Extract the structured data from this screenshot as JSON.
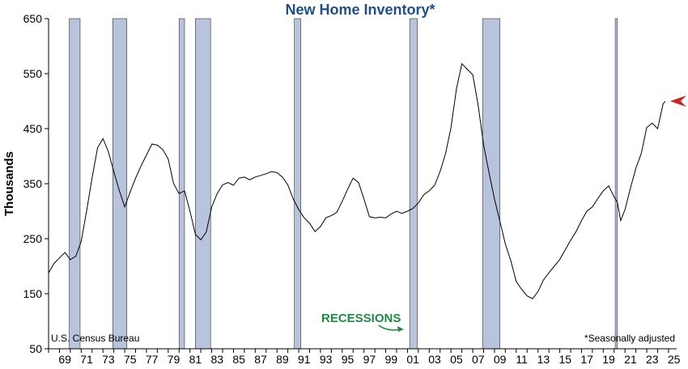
{
  "chart_data": {
    "type": "line",
    "title": "New Home Inventory*",
    "ylabel": "Thousands",
    "ylim": [
      50,
      650
    ],
    "yticks": [
      "650",
      "550",
      "450",
      "350",
      "250",
      "150",
      "50"
    ],
    "xlim": [
      1968.0,
      2025.75
    ],
    "xtick_labels": [
      "69",
      "71",
      "73",
      "75",
      "77",
      "79",
      "81",
      "83",
      "85",
      "87",
      "89",
      "91",
      "93",
      "95",
      "97",
      "99",
      "01",
      "03",
      "05",
      "07",
      "09",
      "11",
      "13",
      "15",
      "17",
      "19",
      "21",
      "23",
      "25"
    ],
    "source": "U.S. Census Bureau",
    "footnote": "*Seasonally adjusted",
    "recession_label": "RECESSIONS",
    "grid": false,
    "colors": {
      "line": "#000000",
      "recession_fill": "#b8c3dc",
      "recession_stroke": "#333333",
      "title": "#1f4e8c",
      "recession_label": "#1e8c44",
      "marker": "#cc2222"
    },
    "recessions": [
      [
        1969.9,
        1970.9
      ],
      [
        1973.9,
        1975.2
      ],
      [
        1980.0,
        1980.5
      ],
      [
        1981.5,
        1982.9
      ],
      [
        1990.6,
        1991.2
      ],
      [
        2001.2,
        2001.9
      ],
      [
        2007.9,
        2009.5
      ],
      [
        2020.1,
        2020.3
      ]
    ],
    "series": [
      {
        "x": [
          1968.0,
          1968.5,
          1969.0,
          1969.5,
          1970.0,
          1970.5,
          1971.0,
          1971.5,
          1972.0,
          1972.5,
          1973.0,
          1973.5,
          1974.0,
          1974.5,
          1975.0,
          1975.5,
          1976.0,
          1976.5,
          1977.0,
          1977.5,
          1978.0,
          1978.5,
          1979.0,
          1979.5,
          1980.0,
          1980.5,
          1981.0,
          1981.5,
          1982.0,
          1982.5,
          1983.0,
          1983.5,
          1984.0,
          1984.5,
          1985.0,
          1985.5,
          1986.0,
          1986.5,
          1987.0,
          1987.5,
          1988.0,
          1988.5,
          1989.0,
          1989.5,
          1990.0,
          1990.5,
          1991.0,
          1991.5,
          1992.0,
          1992.5,
          1993.0,
          1993.5,
          1994.0,
          1994.5,
          1995.0,
          1995.5,
          1996.0,
          1996.5,
          1997.0,
          1997.5,
          1998.0,
          1998.5,
          1999.0,
          1999.5,
          2000.0,
          2000.5,
          2001.0,
          2001.5,
          2002.0,
          2002.5,
          2003.0,
          2003.5,
          2004.0,
          2004.5,
          2005.0,
          2005.5,
          2006.0,
          2006.5,
          2007.0,
          2007.5,
          2008.0,
          2008.5,
          2009.0,
          2009.5,
          2010.0,
          2010.5,
          2011.0,
          2011.5,
          2012.0,
          2012.5,
          2013.0,
          2013.5,
          2014.0,
          2014.5,
          2015.0,
          2015.5,
          2016.0,
          2016.5,
          2017.0,
          2017.5,
          2018.0,
          2018.5,
          2019.0,
          2019.5,
          2020.0,
          2020.3,
          2020.6,
          2021.0,
          2021.5,
          2022.0,
          2022.5,
          2023.0,
          2023.5,
          2024.0,
          2024.5,
          2024.7
        ],
        "values": [
          188,
          205,
          215,
          225,
          212,
          218,
          245,
          300,
          360,
          415,
          432,
          408,
          372,
          338,
          308,
          335,
          360,
          382,
          402,
          422,
          420,
          412,
          395,
          350,
          332,
          337,
          300,
          258,
          248,
          262,
          308,
          332,
          348,
          352,
          347,
          360,
          362,
          357,
          362,
          365,
          368,
          372,
          370,
          362,
          348,
          322,
          303,
          288,
          278,
          263,
          272,
          288,
          292,
          298,
          318,
          340,
          360,
          352,
          322,
          290,
          288,
          289,
          288,
          295,
          300,
          296,
          300,
          305,
          315,
          330,
          337,
          347,
          372,
          405,
          452,
          522,
          568,
          558,
          548,
          492,
          420,
          370,
          322,
          282,
          240,
          210,
          172,
          158,
          146,
          141,
          154,
          175,
          188,
          200,
          212,
          230,
          247,
          263,
          283,
          300,
          308,
          323,
          337,
          346,
          326,
          316,
          283,
          303,
          342,
          378,
          405,
          452,
          460,
          450,
          495,
          500
        ]
      }
    ]
  }
}
